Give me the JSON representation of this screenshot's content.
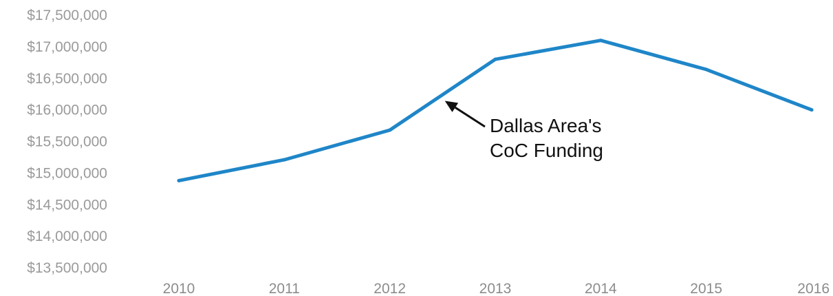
{
  "chart_data": {
    "type": "line",
    "title": "",
    "xlabel": "",
    "ylabel": "",
    "categories": [
      "2010",
      "2011",
      "2012",
      "2013",
      "2014",
      "2015",
      "2016"
    ],
    "series": [
      {
        "color": "#1f86c8",
        "values": [
          14880000,
          15210000,
          15680000,
          16800000,
          17100000,
          16640000,
          16000000
        ]
      }
    ],
    "ylim": [
      13500000,
      17500000
    ],
    "yticks": [
      13500000,
      14000000,
      14500000,
      15000000,
      15500000,
      16000000,
      16500000,
      17000000,
      17500000
    ],
    "ytick_labels": [
      "$13,500,000",
      "$14,000,000",
      "$14,500,000",
      "$15,000,000",
      "$15,500,000",
      "$16,000,000",
      "$16,500,000",
      "$17,000,000",
      "$17,500,000"
    ],
    "grid": false,
    "annotation": {
      "lines": [
        "Dallas Area's",
        "CoC Funding"
      ],
      "points_to": {
        "x": "2012",
        "y": 16100000
      }
    }
  }
}
